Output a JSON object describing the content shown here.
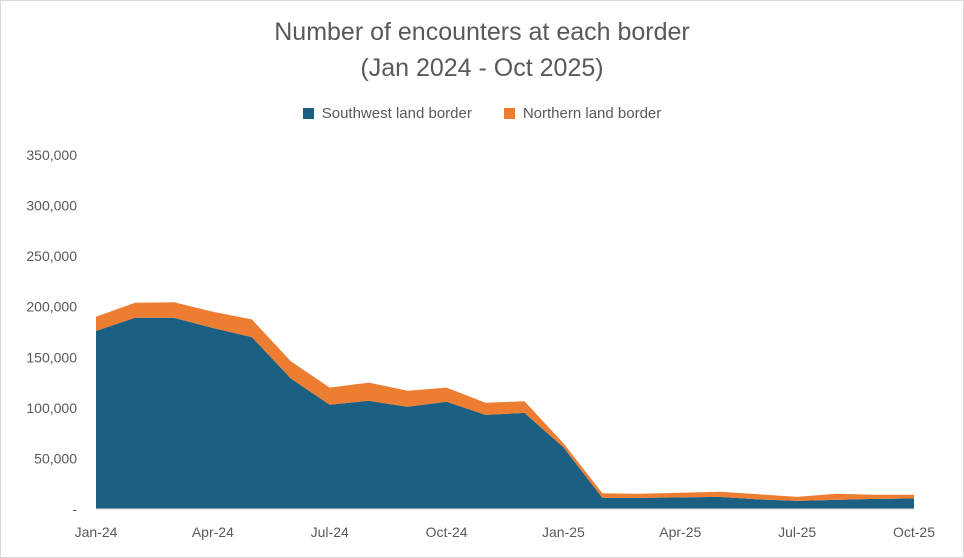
{
  "chart_data": {
    "type": "area",
    "stacked": true,
    "title": "Number of encounters at each border",
    "subtitle": "(Jan 2024 - Oct 2025)",
    "xlabel": "",
    "ylabel": "",
    "x": [
      "Jan-24",
      "Feb-24",
      "Mar-24",
      "Apr-24",
      "May-24",
      "Jun-24",
      "Jul-24",
      "Aug-24",
      "Sep-24",
      "Oct-24",
      "Nov-24",
      "Dec-24",
      "Jan-25",
      "Feb-25",
      "Mar-25",
      "Apr-25",
      "May-25",
      "Jun-25",
      "Jul-25",
      "Aug-25",
      "Sep-25",
      "Oct-25"
    ],
    "x_tick_labels": [
      "Jan-24",
      "Apr-24",
      "Jul-24",
      "Oct-24",
      "Jan-25",
      "Apr-25",
      "Jul-25",
      "Oct-25"
    ],
    "x_tick_indices": [
      0,
      3,
      6,
      9,
      12,
      15,
      18,
      21
    ],
    "y_tick_labels": [
      "-",
      "50,000",
      "100,000",
      "150,000",
      "200,000",
      "250,000",
      "300,000",
      "350,000"
    ],
    "y_ticks": [
      0,
      50000,
      100000,
      150000,
      200000,
      250000,
      300000,
      350000
    ],
    "ylim": [
      0,
      350000
    ],
    "grid": false,
    "legend_position": "top",
    "series": [
      {
        "name": "Southwest land border",
        "color": "#1b5f83",
        "values": [
          176000,
          189000,
          189000,
          179000,
          170000,
          129000,
          103000,
          107000,
          101000,
          106000,
          93000,
          95000,
          61000,
          11000,
          11000,
          11500,
          12000,
          9500,
          8000,
          9000,
          10000,
          10500
        ]
      },
      {
        "name": "Northern land border",
        "color": "#ed7d31",
        "values": [
          14000,
          15000,
          15500,
          16000,
          17500,
          17000,
          17000,
          18000,
          16000,
          14000,
          12000,
          11500,
          4000,
          4500,
          4000,
          4500,
          5000,
          5000,
          4000,
          6000,
          4000,
          3500
        ]
      }
    ]
  }
}
